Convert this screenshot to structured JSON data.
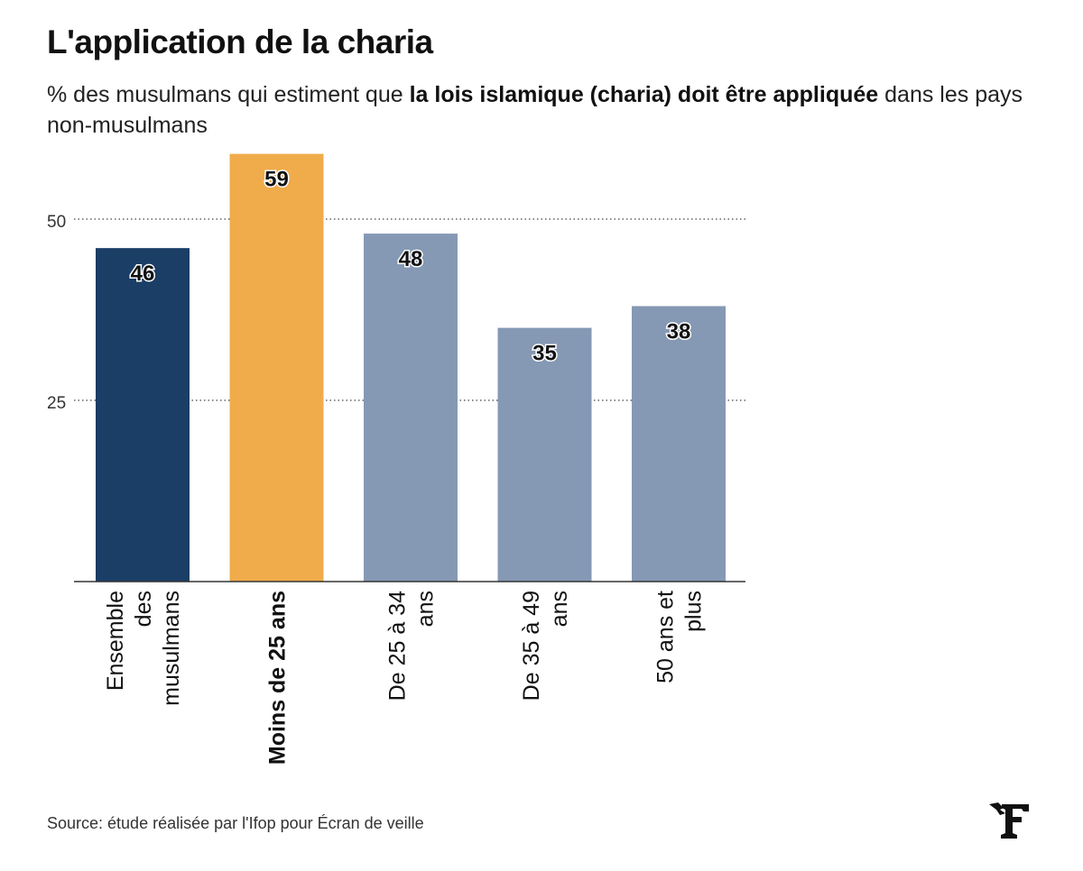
{
  "title": "L'application de la charia",
  "subtitle": {
    "before": "% des musulmans qui estiment que ",
    "bold": "la lois islamique (charia) doit être appliquée",
    "after": " dans les pays non-musulmans"
  },
  "source": "Source: étude réalisée par l'Ifop pour Écran de veille",
  "colors": {
    "overall": "#1a3e66",
    "highlight": "#f0ac4b",
    "default": "#8599b4"
  },
  "chart_data": {
    "type": "bar",
    "categories": [
      [
        "Ensemble",
        "des",
        "musulmans"
      ],
      [
        "Moins de 25 ans"
      ],
      [
        "De 25 à 34",
        "ans"
      ],
      [
        "De 35 à 49",
        "ans"
      ],
      [
        "50 ans et",
        "plus"
      ]
    ],
    "values": [
      46,
      59,
      48,
      35,
      38
    ],
    "highlight_index": 1,
    "overall_index": 0,
    "yticks": [
      25,
      50
    ],
    "ylim": [
      0,
      59
    ],
    "grid": "dotted horizontal",
    "xlabel": "",
    "ylabel": ""
  }
}
